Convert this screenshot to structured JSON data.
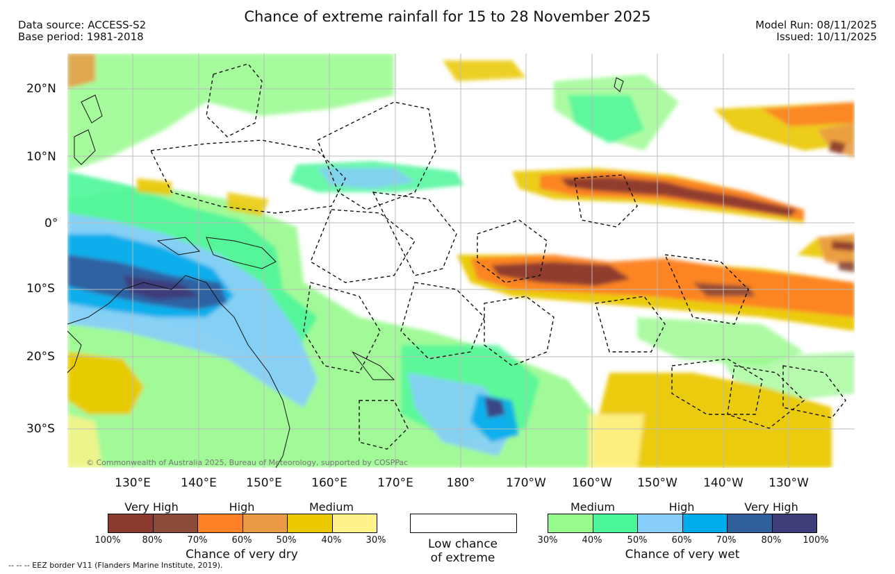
{
  "header": {
    "title": "Chance of extreme rainfall for 15 to 28 November 2025",
    "data_source": "Data source: ACCESS-S2",
    "base_period": "Base period: 1981-2018",
    "model_run": "Model Run: 08/11/2025",
    "issued": "Issued: 10/11/2025"
  },
  "axes": {
    "lat_labels": [
      "20°N",
      "10°N",
      "0°",
      "10°S",
      "20°S",
      "30°S"
    ],
    "lon_labels": [
      "130°E",
      "140°E",
      "150°E",
      "160°E",
      "170°E",
      "180°",
      "170°W",
      "160°W",
      "150°W",
      "140°W",
      "130°W"
    ]
  },
  "map": {
    "copyright": "© Commonwealth of Australia 2025, Bureau of Meteorology, supported by COSPPac"
  },
  "legend": {
    "dry": {
      "categories": [
        "Very High",
        "High",
        "Medium"
      ],
      "colors": [
        "#8b3a2e",
        "#8c4a38",
        "#fd8125",
        "#ea9a45",
        "#eac800",
        "#fff38a"
      ],
      "ticks": [
        "100%",
        "80%",
        "70%",
        "60%",
        "50%",
        "40%",
        "30%"
      ],
      "caption": "Chance of very dry"
    },
    "low": {
      "line1": "Low chance",
      "line2": "of extreme"
    },
    "wet": {
      "categories": [
        "Medium",
        "High",
        "Very High"
      ],
      "colors": [
        "#97fa8c",
        "#4cf69a",
        "#87cdfa",
        "#00aceb",
        "#2f5e9d",
        "#3f3c7a"
      ],
      "ticks": [
        "30%",
        "40%",
        "50%",
        "60%",
        "70%",
        "80%",
        "100%"
      ],
      "caption": "Chance of very wet"
    },
    "eez_note": "-- -- -- EEZ border V11 (Flanders Marine Institute, 2019)."
  }
}
